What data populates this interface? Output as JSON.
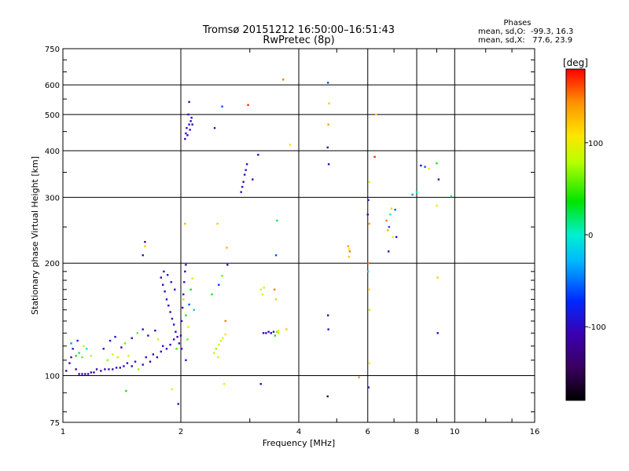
{
  "chart_data": {
    "type": "scatter",
    "title": "Tromsø 20151212 16:50:00–16:51:43",
    "subtitle": "RwPretec (8p)",
    "xlabel": "Frequency [MHz]",
    "ylabel": "Stationary phase Virtual Height [km]",
    "x_scale": "log",
    "y_scale": "log",
    "xlim": [
      1,
      16
    ],
    "ylim": [
      75,
      750
    ],
    "x_ticks": [
      1,
      2,
      4,
      6,
      8,
      10,
      16
    ],
    "x_tick_labels": [
      "1",
      "2",
      "4",
      "6",
      "8",
      "10",
      "16"
    ],
    "y_ticks": [
      75,
      100,
      200,
      300,
      400,
      500,
      600,
      750
    ],
    "y_tick_labels": [
      "75",
      "100",
      "200",
      "300",
      "400",
      "500",
      "600",
      "750"
    ],
    "phase_stats": {
      "heading": "Phases",
      "line_o": "mean, sd,O:  -99.3, 16.3",
      "line_x": "mean, sd,X:   77.6, 23.9"
    },
    "colorbar": {
      "label": "[deg]",
      "ticks": [
        100,
        0,
        -100
      ],
      "tick_labels": [
        "100",
        "0",
        "-100"
      ],
      "range": [
        -180,
        180
      ]
    },
    "points": [
      {
        "x": 1.02,
        "y": 103,
        "p": -110
      },
      {
        "x": 1.04,
        "y": 108,
        "p": -105
      },
      {
        "x": 1.05,
        "y": 112,
        "p": -100
      },
      {
        "x": 1.06,
        "y": 118,
        "p": -98
      },
      {
        "x": 1.08,
        "y": 104,
        "p": -108
      },
      {
        "x": 1.1,
        "y": 101,
        "p": -112
      },
      {
        "x": 1.12,
        "y": 101,
        "p": -110
      },
      {
        "x": 1.14,
        "y": 101,
        "p": -109
      },
      {
        "x": 1.16,
        "y": 101,
        "p": -111
      },
      {
        "x": 1.18,
        "y": 102,
        "p": -108
      },
      {
        "x": 1.2,
        "y": 102,
        "p": -105
      },
      {
        "x": 1.22,
        "y": 104,
        "p": -104
      },
      {
        "x": 1.08,
        "y": 113,
        "p": 40
      },
      {
        "x": 1.1,
        "y": 115,
        "p": 20
      },
      {
        "x": 1.12,
        "y": 112,
        "p": 60
      },
      {
        "x": 1.15,
        "y": 118,
        "p": -10
      },
      {
        "x": 1.18,
        "y": 113,
        "p": 80
      },
      {
        "x": 1.05,
        "y": 122,
        "p": -40
      },
      {
        "x": 1.09,
        "y": 124,
        "p": -80
      },
      {
        "x": 1.13,
        "y": 120,
        "p": 90
      },
      {
        "x": 1.25,
        "y": 103,
        "p": -100
      },
      {
        "x": 1.28,
        "y": 104,
        "p": -106
      },
      {
        "x": 1.31,
        "y": 104,
        "p": -102
      },
      {
        "x": 1.34,
        "y": 104,
        "p": -100
      },
      {
        "x": 1.37,
        "y": 105,
        "p": -104
      },
      {
        "x": 1.4,
        "y": 105,
        "p": -101
      },
      {
        "x": 1.43,
        "y": 106,
        "p": -99
      },
      {
        "x": 1.3,
        "y": 110,
        "p": 70
      },
      {
        "x": 1.34,
        "y": 114,
        "p": 95
      },
      {
        "x": 1.38,
        "y": 112,
        "p": 80
      },
      {
        "x": 1.27,
        "y": 118,
        "p": -95
      },
      {
        "x": 1.32,
        "y": 124,
        "p": -102
      },
      {
        "x": 1.36,
        "y": 127,
        "p": -90
      },
      {
        "x": 1.41,
        "y": 119,
        "p": -110
      },
      {
        "x": 1.44,
        "y": 122,
        "p": 60
      },
      {
        "x": 1.47,
        "y": 113,
        "p": 85
      },
      {
        "x": 1.46,
        "y": 108,
        "p": -100
      },
      {
        "x": 1.5,
        "y": 106,
        "p": -105
      },
      {
        "x": 1.53,
        "y": 109,
        "p": -95
      },
      {
        "x": 1.56,
        "y": 104,
        "p": 70
      },
      {
        "x": 1.6,
        "y": 107,
        "p": -100
      },
      {
        "x": 1.63,
        "y": 112,
        "p": -98
      },
      {
        "x": 1.67,
        "y": 109,
        "p": -110
      },
      {
        "x": 1.7,
        "y": 114,
        "p": -104
      },
      {
        "x": 1.74,
        "y": 112,
        "p": -102
      },
      {
        "x": 1.78,
        "y": 116,
        "p": -100
      },
      {
        "x": 1.5,
        "y": 126,
        "p": -105
      },
      {
        "x": 1.55,
        "y": 130,
        "p": 60
      },
      {
        "x": 1.6,
        "y": 133,
        "p": -90
      },
      {
        "x": 1.65,
        "y": 128,
        "p": -100
      },
      {
        "x": 1.72,
        "y": 132,
        "p": -98
      },
      {
        "x": 1.75,
        "y": 125,
        "p": 85
      },
      {
        "x": 1.8,
        "y": 120,
        "p": -100
      },
      {
        "x": 1.84,
        "y": 118,
        "p": -106
      },
      {
        "x": 1.88,
        "y": 121,
        "p": -100
      },
      {
        "x": 1.92,
        "y": 125,
        "p": -95
      },
      {
        "x": 1.95,
        "y": 118,
        "p": 50
      },
      {
        "x": 1.78,
        "y": 183,
        "p": -110
      },
      {
        "x": 1.8,
        "y": 175,
        "p": -106
      },
      {
        "x": 1.82,
        "y": 168,
        "p": -104
      },
      {
        "x": 1.84,
        "y": 160,
        "p": -100
      },
      {
        "x": 1.86,
        "y": 154,
        "p": -98
      },
      {
        "x": 1.88,
        "y": 148,
        "p": -110
      },
      {
        "x": 1.9,
        "y": 142,
        "p": -102
      },
      {
        "x": 1.92,
        "y": 137,
        "p": -96
      },
      {
        "x": 1.94,
        "y": 131,
        "p": -108
      },
      {
        "x": 1.96,
        "y": 127,
        "p": -104
      },
      {
        "x": 1.81,
        "y": 190,
        "p": -100
      },
      {
        "x": 1.85,
        "y": 186,
        "p": -90
      },
      {
        "x": 1.89,
        "y": 178,
        "p": -105
      },
      {
        "x": 1.93,
        "y": 170,
        "p": -100
      },
      {
        "x": 1.98,
        "y": 122,
        "p": -100
      },
      {
        "x": 2.0,
        "y": 128,
        "p": -106
      },
      {
        "x": 2.01,
        "y": 140,
        "p": -100
      },
      {
        "x": 2.02,
        "y": 152,
        "p": -104
      },
      {
        "x": 2.03,
        "y": 165,
        "p": -98
      },
      {
        "x": 2.04,
        "y": 178,
        "p": -100
      },
      {
        "x": 2.05,
        "y": 190,
        "p": -108
      },
      {
        "x": 2.06,
        "y": 198,
        "p": -102
      },
      {
        "x": 2.03,
        "y": 160,
        "p": 75
      },
      {
        "x": 2.06,
        "y": 145,
        "p": 40
      },
      {
        "x": 2.09,
        "y": 135,
        "p": 95
      },
      {
        "x": 2.1,
        "y": 155,
        "p": -60
      },
      {
        "x": 2.12,
        "y": 170,
        "p": 30
      },
      {
        "x": 2.14,
        "y": 182,
        "p": 80
      },
      {
        "x": 2.16,
        "y": 150,
        "p": -20
      },
      {
        "x": 2.08,
        "y": 125,
        "p": 60
      },
      {
        "x": 2.01,
        "y": 118,
        "p": -102
      },
      {
        "x": 2.06,
        "y": 110,
        "p": -100
      },
      {
        "x": 2.05,
        "y": 430,
        "p": -110
      },
      {
        "x": 2.06,
        "y": 445,
        "p": -104
      },
      {
        "x": 2.07,
        "y": 460,
        "p": -100
      },
      {
        "x": 2.08,
        "y": 440,
        "p": -108
      },
      {
        "x": 2.1,
        "y": 470,
        "p": -102
      },
      {
        "x": 2.11,
        "y": 455,
        "p": -98
      },
      {
        "x": 2.12,
        "y": 480,
        "p": -106
      },
      {
        "x": 2.13,
        "y": 490,
        "p": -100
      },
      {
        "x": 2.14,
        "y": 470,
        "p": -104
      },
      {
        "x": 2.09,
        "y": 500,
        "p": -100
      },
      {
        "x": 2.1,
        "y": 540,
        "p": -120
      },
      {
        "x": 2.43,
        "y": 115,
        "p": 90
      },
      {
        "x": 2.46,
        "y": 118,
        "p": 70
      },
      {
        "x": 2.5,
        "y": 121,
        "p": 95
      },
      {
        "x": 2.53,
        "y": 124,
        "p": 80
      },
      {
        "x": 2.56,
        "y": 126,
        "p": 100
      },
      {
        "x": 2.49,
        "y": 112,
        "p": 85
      },
      {
        "x": 2.6,
        "y": 129,
        "p": 110
      },
      {
        "x": 2.48,
        "y": 255,
        "p": 120
      },
      {
        "x": 2.55,
        "y": 525,
        "p": -60
      },
      {
        "x": 2.62,
        "y": 220,
        "p": 130
      },
      {
        "x": 2.63,
        "y": 198,
        "p": -105
      },
      {
        "x": 2.5,
        "y": 175,
        "p": -70
      },
      {
        "x": 2.55,
        "y": 185,
        "p": 60
      },
      {
        "x": 2.6,
        "y": 140,
        "p": 150
      },
      {
        "x": 2.4,
        "y": 165,
        "p": 40
      },
      {
        "x": 2.44,
        "y": 460,
        "p": -100
      },
      {
        "x": 2.58,
        "y": 95,
        "p": 100
      },
      {
        "x": 2.85,
        "y": 310,
        "p": -105
      },
      {
        "x": 2.87,
        "y": 320,
        "p": -100
      },
      {
        "x": 2.89,
        "y": 330,
        "p": -110
      },
      {
        "x": 2.91,
        "y": 345,
        "p": -104
      },
      {
        "x": 2.93,
        "y": 355,
        "p": -102
      },
      {
        "x": 2.95,
        "y": 368,
        "p": -100
      },
      {
        "x": 2.97,
        "y": 530,
        "p": 170
      },
      {
        "x": 3.05,
        "y": 335,
        "p": -98
      },
      {
        "x": 3.15,
        "y": 390,
        "p": -108
      },
      {
        "x": 3.2,
        "y": 170,
        "p": 90
      },
      {
        "x": 3.23,
        "y": 165,
        "p": 100
      },
      {
        "x": 3.26,
        "y": 172,
        "p": 80
      },
      {
        "x": 3.25,
        "y": 130,
        "p": -110
      },
      {
        "x": 3.3,
        "y": 130,
        "p": -100
      },
      {
        "x": 3.35,
        "y": 131,
        "p": -104
      },
      {
        "x": 3.4,
        "y": 130,
        "p": -98
      },
      {
        "x": 3.45,
        "y": 131,
        "p": -100
      },
      {
        "x": 3.48,
        "y": 128,
        "p": 40
      },
      {
        "x": 3.52,
        "y": 131,
        "p": 60
      },
      {
        "x": 3.55,
        "y": 130,
        "p": 90
      },
      {
        "x": 3.5,
        "y": 210,
        "p": -60
      },
      {
        "x": 3.52,
        "y": 260,
        "p": 20
      },
      {
        "x": 3.47,
        "y": 170,
        "p": 150
      },
      {
        "x": 3.5,
        "y": 160,
        "p": 120
      },
      {
        "x": 3.55,
        "y": 132,
        "p": 100
      },
      {
        "x": 3.2,
        "y": 95,
        "p": -100
      },
      {
        "x": 3.65,
        "y": 620,
        "p": 150
      },
      {
        "x": 3.72,
        "y": 133,
        "p": 120
      },
      {
        "x": 3.8,
        "y": 415,
        "p": 110
      },
      {
        "x": 4.75,
        "y": 608,
        "p": -60
      },
      {
        "x": 4.78,
        "y": 535,
        "p": 120
      },
      {
        "x": 4.76,
        "y": 470,
        "p": 140
      },
      {
        "x": 4.74,
        "y": 408,
        "p": -105
      },
      {
        "x": 4.77,
        "y": 368,
        "p": -100
      },
      {
        "x": 4.75,
        "y": 145,
        "p": -104
      },
      {
        "x": 4.76,
        "y": 133,
        "p": -100
      },
      {
        "x": 4.74,
        "y": 88,
        "p": -150
      },
      {
        "x": 5.35,
        "y": 222,
        "p": 140
      },
      {
        "x": 5.38,
        "y": 218,
        "p": 110
      },
      {
        "x": 5.4,
        "y": 215,
        "p": 150
      },
      {
        "x": 5.37,
        "y": 208,
        "p": 120
      },
      {
        "x": 5.7,
        "y": 99,
        "p": 140
      },
      {
        "x": 6.0,
        "y": 270,
        "p": -104
      },
      {
        "x": 6.02,
        "y": 295,
        "p": -100
      },
      {
        "x": 6.05,
        "y": 255,
        "p": 140
      },
      {
        "x": 6.03,
        "y": 200,
        "p": 150
      },
      {
        "x": 6.01,
        "y": 190,
        "p": -20
      },
      {
        "x": 6.04,
        "y": 170,
        "p": 120
      },
      {
        "x": 6.06,
        "y": 150,
        "p": 80
      },
      {
        "x": 6.05,
        "y": 108,
        "p": 100
      },
      {
        "x": 6.03,
        "y": 93,
        "p": -105
      },
      {
        "x": 6.05,
        "y": 330,
        "p": 90
      },
      {
        "x": 6.25,
        "y": 385,
        "p": 170
      },
      {
        "x": 6.3,
        "y": 500,
        "p": 110
      },
      {
        "x": 6.7,
        "y": 260,
        "p": 150
      },
      {
        "x": 6.75,
        "y": 245,
        "p": 130
      },
      {
        "x": 6.8,
        "y": 250,
        "p": -60
      },
      {
        "x": 6.85,
        "y": 270,
        "p": 0
      },
      {
        "x": 6.9,
        "y": 280,
        "p": 120
      },
      {
        "x": 6.95,
        "y": 235,
        "p": 90
      },
      {
        "x": 6.78,
        "y": 215,
        "p": -110
      },
      {
        "x": 7.05,
        "y": 278,
        "p": -60
      },
      {
        "x": 7.1,
        "y": 235,
        "p": -100
      },
      {
        "x": 7.8,
        "y": 305,
        "p": -40
      },
      {
        "x": 8.0,
        "y": 310,
        "p": 10
      },
      {
        "x": 8.2,
        "y": 365,
        "p": -104
      },
      {
        "x": 8.4,
        "y": 362,
        "p": -60
      },
      {
        "x": 8.6,
        "y": 358,
        "p": 110
      },
      {
        "x": 9.0,
        "y": 370,
        "p": 40
      },
      {
        "x": 9.1,
        "y": 335,
        "p": -104
      },
      {
        "x": 9.0,
        "y": 285,
        "p": 110
      },
      {
        "x": 9.05,
        "y": 183,
        "p": 120
      },
      {
        "x": 9.05,
        "y": 130,
        "p": -100
      },
      {
        "x": 9.8,
        "y": 302,
        "p": 20
      },
      {
        "x": 1.62,
        "y": 228,
        "p": -104
      },
      {
        "x": 1.62,
        "y": 222,
        "p": 120
      },
      {
        "x": 1.6,
        "y": 210,
        "p": -100
      },
      {
        "x": 1.45,
        "y": 91,
        "p": 40
      },
      {
        "x": 1.9,
        "y": 92,
        "p": 90
      },
      {
        "x": 1.97,
        "y": 84,
        "p": -104
      },
      {
        "x": 2.05,
        "y": 255,
        "p": 130
      }
    ]
  }
}
